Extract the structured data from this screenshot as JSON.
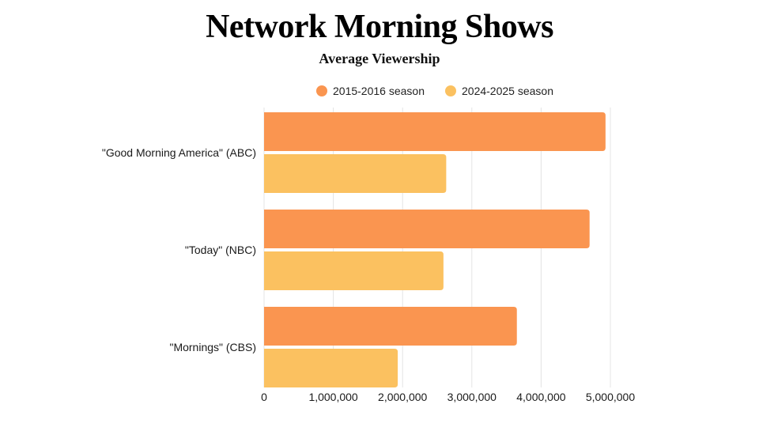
{
  "chart_data": {
    "type": "bar",
    "orientation": "horizontal",
    "title": "Network Morning Shows",
    "subtitle": "Average Viewership",
    "categories": [
      "\"Good Morning America\" (ABC)",
      "\"Today\" (NBC)",
      "\"Mornings\" (CBS)"
    ],
    "series": [
      {
        "name": "2015-2016 season",
        "color": "#FA9550",
        "values": [
          4930000,
          4700000,
          3650000
        ]
      },
      {
        "name": "2024-2025 season",
        "color": "#FBC160",
        "values": [
          2630000,
          2590000,
          1930000
        ]
      }
    ],
    "xlim": [
      0,
      5000000
    ],
    "x_ticks": [
      0,
      1000000,
      2000000,
      3000000,
      4000000,
      5000000
    ],
    "x_tick_labels": [
      "0",
      "1,000,000",
      "2,000,000",
      "3,000,000",
      "4,000,000",
      "5,000,000"
    ],
    "grid": "vertical",
    "legend_position": "top"
  }
}
